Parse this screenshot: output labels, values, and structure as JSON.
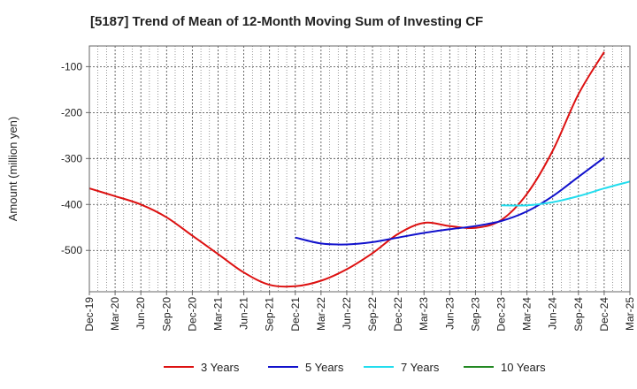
{
  "chart_data": {
    "type": "line",
    "title": "[5187]  Trend of Mean of 12-Month Moving Sum of Investing CF",
    "xlabel": "",
    "ylabel": "Amount (million yen)",
    "ylim": [
      -590,
      -55
    ],
    "yticks": [
      -500,
      -400,
      -300,
      -200,
      -100
    ],
    "ytick_labels": [
      "-500",
      "-400",
      "-300",
      "-200",
      "-100"
    ],
    "x_categories": [
      "Dec-19",
      "Mar-20",
      "Jun-20",
      "Sep-20",
      "Dec-20",
      "Mar-21",
      "Jun-21",
      "Sep-21",
      "Dec-21",
      "Mar-22",
      "Jun-22",
      "Sep-22",
      "Dec-22",
      "Mar-23",
      "Jun-23",
      "Sep-23",
      "Dec-23",
      "Mar-24",
      "Jun-24",
      "Sep-24",
      "Dec-24",
      "Mar-25"
    ],
    "grid": true,
    "legend_position": "bottom",
    "series": [
      {
        "name": "3 Years",
        "color": "#dd1111",
        "x_start": 0,
        "values": [
          -365,
          -382,
          -400,
          -428,
          -468,
          -508,
          -548,
          -575,
          -578,
          -566,
          -541,
          -506,
          -464,
          -440,
          -447,
          -451,
          -434,
          -377,
          -283,
          -160,
          -68
        ]
      },
      {
        "name": "5 Years",
        "color": "#1111cc",
        "x_start": 8,
        "values": [
          -472,
          -485,
          -487,
          -482,
          -472,
          -462,
          -454,
          -447,
          -436,
          -415,
          -382,
          -340,
          -298
        ]
      },
      {
        "name": "7 Years",
        "color": "#22ddee",
        "x_start": 16,
        "values": [
          -402,
          -402,
          -395,
          -382,
          -365,
          -350
        ]
      },
      {
        "name": "10 Years",
        "color": "#228822",
        "x_start": 0,
        "values": []
      }
    ]
  }
}
